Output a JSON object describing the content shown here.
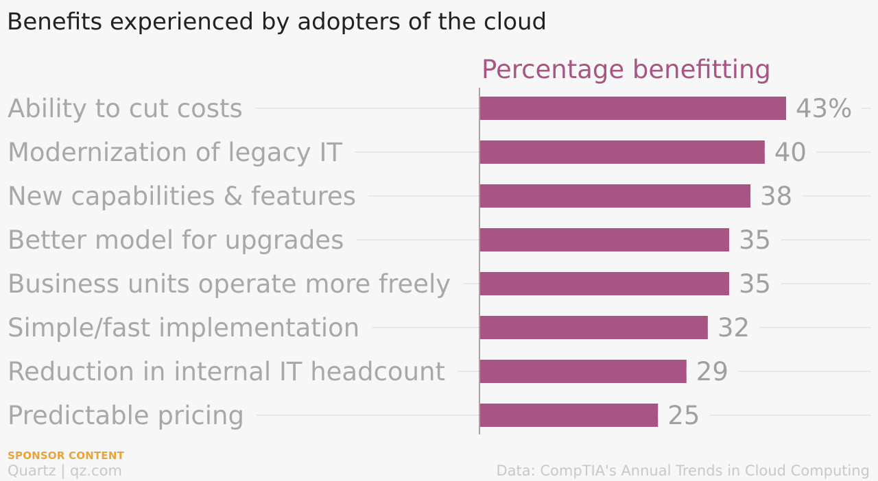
{
  "title": "Benefits experienced by adopters of the cloud",
  "sponsor": "SPONSOR CONTENT",
  "brand": "Quartz | qz.com",
  "source": "Data: CompTIA's Annual Trends in Cloud Computing",
  "colors": {
    "bar": "#a85584",
    "subtitle": "#a85584",
    "category_label": "#a8a8a8",
    "value_label": "#a0a0a0",
    "gridline": "#e4e4e4",
    "axis": "#888888",
    "sponsor": "#e8a33b",
    "footer": "#c8c8c8"
  },
  "chart_data": {
    "type": "bar",
    "orientation": "horizontal",
    "title": "Benefits experienced by adopters of the cloud",
    "subtitle": "Percentage benefitting",
    "categories": [
      "Ability to cut costs",
      "Modernization of legacy IT",
      "New capabilities & features",
      "Better model for upgrades",
      "Business units operate more freely",
      "Simple/fast implementation",
      "Reduction in internal IT headcount",
      "Predictable pricing"
    ],
    "values": [
      43,
      40,
      38,
      35,
      35,
      32,
      29,
      25
    ],
    "value_labels": [
      "43%",
      "40",
      "38",
      "35",
      "35",
      "32",
      "29",
      "25"
    ],
    "unit": "%",
    "xlim": [
      0,
      55
    ],
    "grid": true
  }
}
